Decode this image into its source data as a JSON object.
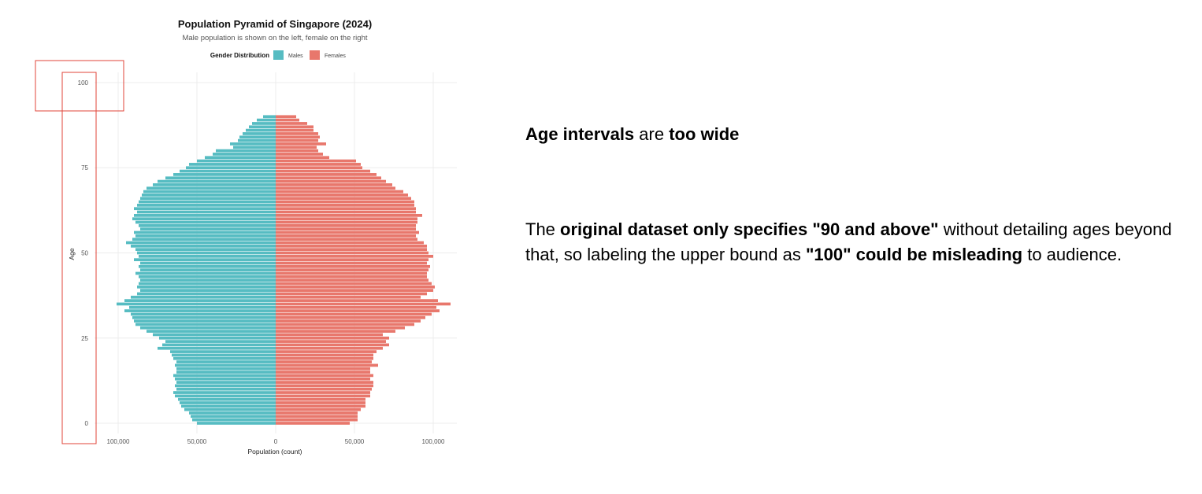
{
  "chart_data": {
    "type": "bar",
    "orientation": "horizontal",
    "title": "Population Pyramid of Singapore (2024)",
    "subtitle": "Male population is shown on the left, female on the right",
    "xlabel": "Population (count)",
    "ylabel": "Age",
    "legend": {
      "title": "Gender Distribution",
      "position": "top",
      "entries": [
        "Males",
        "Females"
      ]
    },
    "colors": {
      "Males": "#56BCC2",
      "Females": "#E8776C",
      "highlight": "#E0453A"
    },
    "xlim": [
      -115000,
      115000
    ],
    "ylim": [
      -3,
      103
    ],
    "x_ticks": [
      {
        "value": -100000,
        "label": "100,000"
      },
      {
        "value": -50000,
        "label": "50,000"
      },
      {
        "value": 0,
        "label": "0"
      },
      {
        "value": 50000,
        "label": "50,000"
      },
      {
        "value": 100000,
        "label": "100,000"
      }
    ],
    "y_ticks": [
      0,
      25,
      50,
      75,
      100
    ],
    "grid": true,
    "ages": [
      0,
      1,
      2,
      3,
      4,
      5,
      6,
      7,
      8,
      9,
      10,
      11,
      12,
      13,
      14,
      15,
      16,
      17,
      18,
      19,
      20,
      21,
      22,
      23,
      24,
      25,
      26,
      27,
      28,
      29,
      30,
      31,
      32,
      33,
      34,
      35,
      36,
      37,
      38,
      39,
      40,
      41,
      42,
      43,
      44,
      45,
      46,
      47,
      48,
      49,
      50,
      51,
      52,
      53,
      54,
      55,
      56,
      57,
      58,
      59,
      60,
      61,
      62,
      63,
      64,
      65,
      66,
      67,
      68,
      69,
      70,
      71,
      72,
      73,
      74,
      75,
      76,
      77,
      78,
      79,
      80,
      81,
      82,
      83,
      84,
      85,
      86,
      87,
      88,
      89,
      90
    ],
    "series": [
      {
        "name": "Males",
        "values": [
          50000,
          53000,
          54000,
          55000,
          58000,
          60000,
          61000,
          62000,
          64000,
          65000,
          63000,
          64000,
          63000,
          64000,
          65000,
          63000,
          63000,
          64000,
          63000,
          65000,
          66000,
          67000,
          75000,
          72000,
          70000,
          74000,
          78000,
          82000,
          86000,
          89000,
          90000,
          91000,
          92000,
          96000,
          93000,
          101000,
          96000,
          92000,
          88000,
          86000,
          88000,
          87000,
          86000,
          87000,
          89000,
          86000,
          87000,
          86000,
          90000,
          87000,
          88000,
          89000,
          92000,
          95000,
          91000,
          89000,
          90000,
          86000,
          87000,
          89000,
          91000,
          90000,
          88000,
          90000,
          88000,
          87000,
          86000,
          85000,
          84000,
          82000,
          78000,
          75000,
          70000,
          65000,
          61000,
          57000,
          55000,
          50000,
          45000,
          40000,
          38000,
          27000,
          29000,
          24000,
          23000,
          21000,
          19000,
          17000,
          15000,
          12000,
          8000
        ]
      },
      {
        "name": "Females",
        "values": [
          47000,
          52000,
          52000,
          52000,
          54000,
          57000,
          57000,
          57000,
          60000,
          60000,
          61000,
          62000,
          62000,
          60000,
          62000,
          60000,
          60000,
          65000,
          61000,
          62000,
          62000,
          64000,
          68000,
          72000,
          70000,
          72000,
          68000,
          76000,
          82000,
          88000,
          92000,
          95000,
          99000,
          104000,
          102000,
          111000,
          103000,
          92000,
          96000,
          100000,
          101000,
          99000,
          97000,
          96000,
          96000,
          97000,
          98000,
          96000,
          97000,
          100000,
          97000,
          96000,
          96000,
          94000,
          90000,
          89000,
          91000,
          89000,
          89000,
          90000,
          90000,
          93000,
          89000,
          89000,
          88000,
          88000,
          86000,
          84000,
          81000,
          76000,
          74000,
          70000,
          67000,
          64000,
          60000,
          55000,
          54000,
          51000,
          34000,
          30000,
          27000,
          26000,
          32000,
          27000,
          28000,
          27000,
          24000,
          24000,
          20000,
          15000,
          13000
        ]
      }
    ],
    "highlight_boxes": [
      "y-axis age labels",
      "100 tick label"
    ]
  },
  "annotations": {
    "note1": {
      "b1": "Age intervals",
      "t1": " are ",
      "b2": "too wide"
    },
    "note2": {
      "t1": "The ",
      "b1": "original dataset only specifies \"90 and above\"",
      "t2": " without detailing ages beyond that, so labeling the upper bound as ",
      "b2": "\"100\" could be misleading",
      "t3": " to audience."
    }
  }
}
